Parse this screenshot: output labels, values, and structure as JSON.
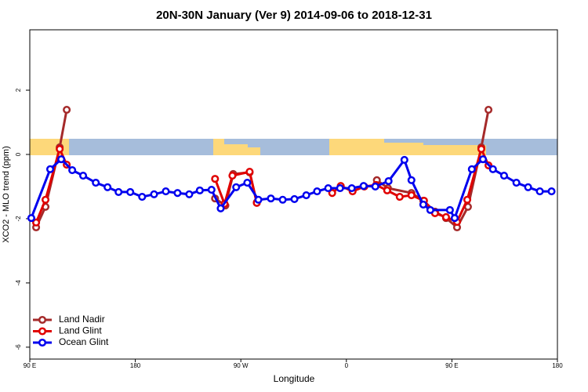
{
  "chart_data": {
    "type": "line",
    "title": "20N-30N January (Ver 9)   2014-09-06 to 2018-12-31",
    "xlabel": "Longitude",
    "ylabel": "XCO2 - MLO trend (ppm)",
    "xlim": [
      90,
      540
    ],
    "ylim": [
      -6.37,
      3.88
    ],
    "xticks": [
      {
        "value": 90,
        "label": "90 E"
      },
      180,
      {
        "value": 270,
        "label": "90 W"
      },
      {
        "value": 360,
        "label": "0"
      },
      {
        "value": 450,
        "label": "90 E"
      },
      {
        "value": 540,
        "label": "180"
      }
    ],
    "yticks": [
      -6,
      -4,
      -2,
      0,
      2
    ],
    "legend": "bottom-left",
    "series": [
      {
        "name": "Land Nadir",
        "color": "#a52a2a",
        "x": [
          95.4,
          103.4,
          115.5,
          121.5,
          null,
          248,
          256.8,
          263.5,
          277.5,
          283.6,
          null,
          386,
          395.5,
          415.5,
          425.6,
          435.6,
          445,
          454.4,
          463.7,
          475.1,
          481.2
        ],
        "values": [
          -2.27,
          -1.63,
          0.22,
          1.39,
          null,
          -1.37,
          -1.59,
          -0.61,
          -0.56,
          -1.49,
          null,
          -0.8,
          -1.05,
          -1.2,
          -1.44,
          -1.78,
          -1.98,
          -2.27,
          -1.63,
          0.22,
          1.39
        ]
      },
      {
        "name": "Land Glint",
        "color": "#e00000",
        "x": [
          95.4,
          103.4,
          115.5,
          121.5,
          null,
          248,
          256.1,
          262.8,
          277.5,
          283.6,
          null,
          347.9,
          355.2,
          365.3,
          375.3,
          385.4,
          394.8,
          405.5,
          415.5,
          426.2,
          435.6,
          445,
          454.4,
          463.1,
          475.1,
          481.2
        ],
        "values": [
          -2.12,
          -1.41,
          0.17,
          -0.32,
          null,
          -0.76,
          -1.54,
          -0.66,
          -0.54,
          -1.51,
          null,
          -1.2,
          -0.98,
          -1.15,
          -1.0,
          -0.95,
          -1.12,
          -1.32,
          -1.27,
          -1.44,
          -1.83,
          -1.95,
          -2.1,
          -1.41,
          0.17,
          -0.34
        ]
      },
      {
        "name": "Ocean Glint",
        "color": "#0000ee",
        "x": [
          91.3,
          107.4,
          116.8,
          126.2,
          135.5,
          146.3,
          156.3,
          165.7,
          175.7,
          185.8,
          196,
          206,
          216,
          226,
          235,
          245,
          252.8,
          266,
          275.5,
          285,
          295.6,
          305.7,
          315.7,
          325.8,
          335,
          344.5,
          354.6,
          364.6,
          374.7,
          384.7,
          396,
          409.5,
          415.5,
          425.6,
          431.6,
          448.3,
          452.4,
          467,
          476.5,
          485,
          494.5,
          505,
          515,
          525,
          535
        ],
        "values": [
          -1.98,
          -0.46,
          -0.15,
          -0.49,
          -0.66,
          -0.88,
          -1.02,
          -1.17,
          -1.17,
          -1.32,
          -1.24,
          -1.15,
          -1.2,
          -1.24,
          -1.12,
          -1.1,
          -1.68,
          -1.02,
          -0.88,
          -1.41,
          -1.37,
          -1.41,
          -1.39,
          -1.27,
          -1.15,
          -1.05,
          -1.05,
          -1.05,
          -0.98,
          -1.0,
          -0.83,
          -0.17,
          -0.8,
          -1.56,
          -1.73,
          -1.73,
          -1.98,
          -0.46,
          -0.15,
          -0.46,
          -0.66,
          -0.88,
          -1.02,
          -1.15,
          -1.15
        ]
      }
    ]
  }
}
